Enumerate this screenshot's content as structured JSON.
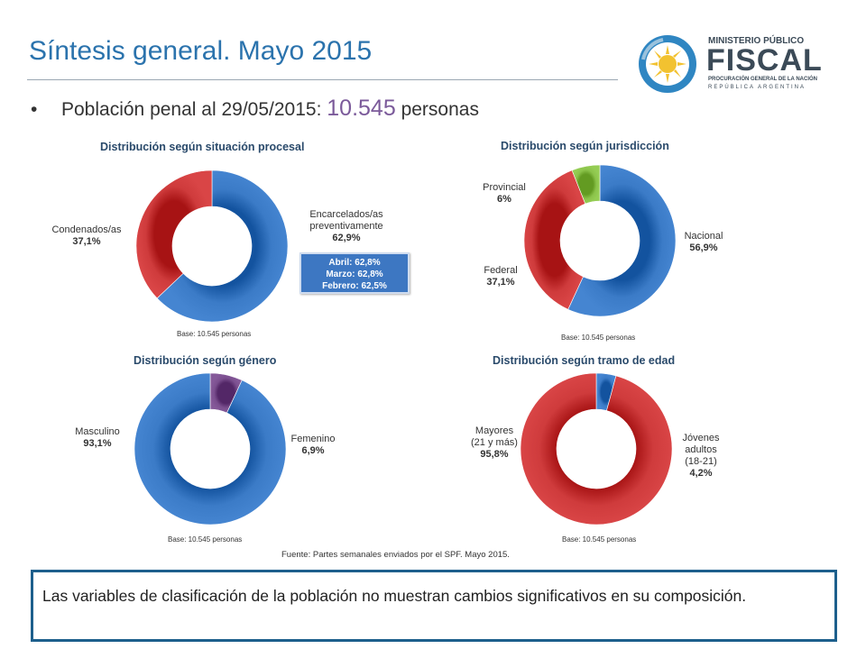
{
  "header": {
    "title": "Síntesis general. Mayo 2015",
    "logo": {
      "line1": "MINISTERIO PÚBLICO",
      "line2": "FISCAL",
      "line3": "PROCURACIÓN GENERAL DE LA NACIÓN",
      "line4": "REPÚBLICA ARGENTINA"
    }
  },
  "summary": {
    "prefix": "Población penal al 29/05/2015",
    "colon": ":",
    "count": "10.545",
    "suffix": "personas"
  },
  "note_box": [
    "Abril: 62,8%",
    "Marzo: 62,8%",
    "Febrero: 62,5%"
  ],
  "source": "Fuente: Partes semanales enviados por el SPF. Mayo 2015.",
  "conclusion": "Las variables de clasificación de la población no muestran cambios significativos en su composición.",
  "colors": {
    "blue": "#3b7bc7",
    "red": "#cf3b3c",
    "green": "#8bc34a",
    "purple": "#7b4f8f"
  },
  "chart_data": [
    {
      "type": "pie",
      "title": "Distribución según situación procesal",
      "base": "Base: 10.545 personas",
      "categories": [
        "Encarcelados/as preventivamente",
        "Condenados/as"
      ],
      "values": [
        62.9,
        37.1
      ],
      "labels": [
        {
          "name_lines": [
            "Encarcelados/as",
            "preventivamente"
          ],
          "value": "62,9%"
        },
        {
          "name_lines": [
            "Condenados/as"
          ],
          "value": "37,1%"
        }
      ],
      "colors": [
        "#3b7bc7",
        "#cf3b3c"
      ]
    },
    {
      "type": "pie",
      "title": "Distribución según jurisdicción",
      "base": "Base: 10.545 personas",
      "categories": [
        "Nacional",
        "Federal",
        "Provincial"
      ],
      "values": [
        56.9,
        37.1,
        6
      ],
      "labels": [
        {
          "name_lines": [
            "Nacional"
          ],
          "value": "56,9%"
        },
        {
          "name_lines": [
            "Federal"
          ],
          "value": "37,1%"
        },
        {
          "name_lines": [
            "Provincial"
          ],
          "value": "6%"
        }
      ],
      "colors": [
        "#3b7bc7",
        "#cf3b3c",
        "#8bc34a"
      ]
    },
    {
      "type": "pie",
      "title": "Distribución según género",
      "base": "Base: 10.545 personas",
      "categories": [
        "Femenino",
        "Masculino"
      ],
      "values": [
        6.9,
        93.1
      ],
      "labels": [
        {
          "name_lines": [
            "Femenino"
          ],
          "value": "6,9%"
        },
        {
          "name_lines": [
            "Masculino"
          ],
          "value": "93,1%"
        }
      ],
      "colors": [
        "#7b4f8f",
        "#3b7bc7"
      ]
    },
    {
      "type": "pie",
      "title": "Distribución según tramo de edad",
      "base": "Base: 10.545 personas",
      "categories": [
        "Jóvenes adultos (18-21)",
        "Mayores (21 y más)"
      ],
      "values": [
        4.2,
        95.8
      ],
      "labels": [
        {
          "name_lines": [
            "Jóvenes",
            "adultos",
            "(18-21)"
          ],
          "value": "4,2%"
        },
        {
          "name_lines": [
            "Mayores",
            "(21 y más)"
          ],
          "value": "95,8%"
        }
      ],
      "colors": [
        "#3b7bc7",
        "#cf3b3c"
      ]
    }
  ]
}
